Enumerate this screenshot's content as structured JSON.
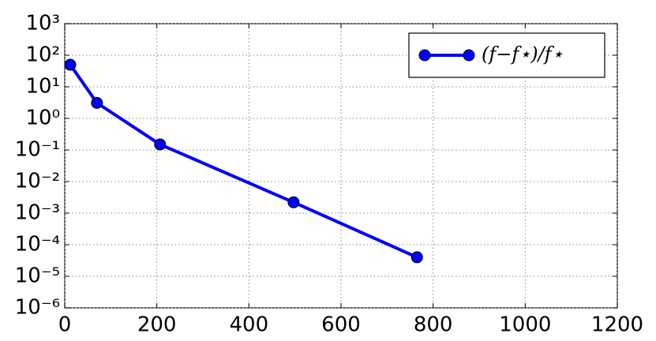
{
  "chart_data": {
    "type": "line",
    "log_y": true,
    "grid": true,
    "legend": "upper right",
    "x": [
      12,
      70,
      207,
      497,
      765
    ],
    "series": [
      {
        "name": "(f−f⋆)/f⋆",
        "color": "#0000ff",
        "values": [
          50,
          3.1,
          0.15,
          0.0022,
          4e-05
        ]
      }
    ],
    "xlim": [
      0,
      1200
    ],
    "xticks": [
      0,
      200,
      400,
      600,
      800,
      1000,
      1200
    ],
    "ylim": [
      1e-06,
      1000
    ],
    "yticks": [
      {
        "value": 1e-06,
        "label": "10⁻⁶"
      },
      {
        "value": 1e-05,
        "label": "10⁻⁵"
      },
      {
        "value": 0.0001,
        "label": "10⁻⁴"
      },
      {
        "value": 0.001,
        "label": "10⁻³"
      },
      {
        "value": 0.01,
        "label": "10⁻²"
      },
      {
        "value": 0.1,
        "label": "10⁻¹"
      },
      {
        "value": 1,
        "label": "10⁰"
      },
      {
        "value": 10,
        "label": "10¹"
      },
      {
        "value": 100,
        "label": "10²"
      },
      {
        "value": 1000,
        "label": "10³"
      }
    ]
  }
}
